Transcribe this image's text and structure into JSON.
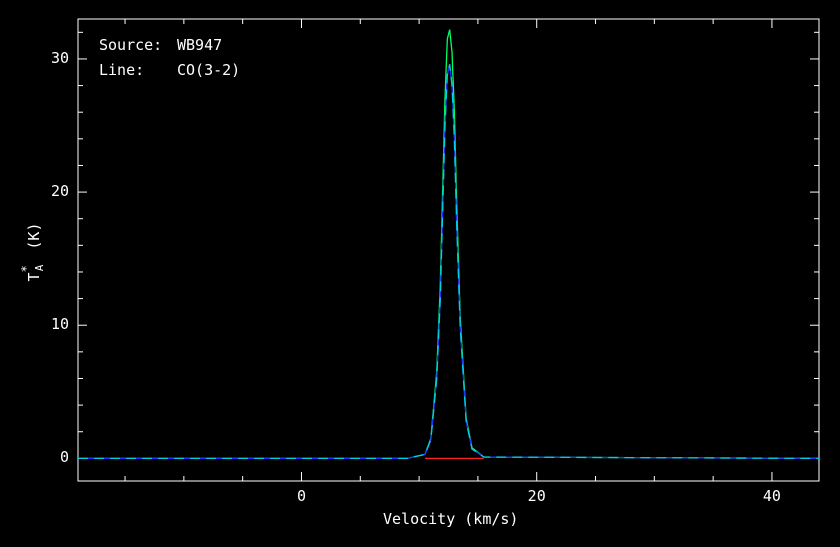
{
  "info": {
    "source_key": "Source:",
    "source_value": "WB947",
    "line_key": "Line:",
    "line_value": "CO(3-2)"
  },
  "chart_data": {
    "type": "line",
    "xlabel": "Velocity (km/s)",
    "ylabel_main": "T",
    "ylabel_sup": "*",
    "ylabel_sub": "A",
    "ylabel_unit": "(K)",
    "xlim": [
      -19,
      44
    ],
    "ylim": [
      -1.7,
      33
    ],
    "x_ticks": [
      0,
      20,
      40
    ],
    "y_ticks": [
      0,
      10,
      20,
      30
    ],
    "peak_velocity": 12.6,
    "series": [
      {
        "color": "#00ff66",
        "style": "solid",
        "x": [
          -19,
          9,
          10.5,
          11.0,
          11.5,
          11.8,
          12.0,
          12.2,
          12.4,
          12.6,
          12.8,
          13.0,
          13.2,
          13.5,
          14.0,
          14.5,
          15.5,
          44
        ],
        "y": [
          0,
          0,
          0.3,
          1.5,
          6.5,
          13.0,
          20.0,
          27.0,
          31.5,
          32.2,
          30.5,
          26.0,
          19.0,
          10.5,
          3.0,
          0.8,
          0.1,
          0
        ]
      },
      {
        "color": "#2233ff",
        "style": "solid",
        "x": [
          -19,
          9,
          10.5,
          11.0,
          11.5,
          11.8,
          12.0,
          12.2,
          12.4,
          12.6,
          12.8,
          13.0,
          13.2,
          13.5,
          14.0,
          14.5,
          15.5,
          44
        ],
        "y": [
          0,
          0,
          0.3,
          1.4,
          6.0,
          12.0,
          18.5,
          25.0,
          28.8,
          29.6,
          28.0,
          24.0,
          17.5,
          9.8,
          2.8,
          0.7,
          0.1,
          0
        ]
      },
      {
        "color": "#00d0e0",
        "style": "dashed",
        "x": [
          -19,
          9,
          10.5,
          11.0,
          11.5,
          11.8,
          12.0,
          12.2,
          12.4,
          12.6,
          12.8,
          13.0,
          13.2,
          13.5,
          14.0,
          14.5,
          15.5,
          44
        ],
        "y": [
          0,
          0,
          0.3,
          1.4,
          6.0,
          12.0,
          18.5,
          25.0,
          28.8,
          29.6,
          28.0,
          24.0,
          17.5,
          9.8,
          2.8,
          0.7,
          0.1,
          0
        ]
      }
    ],
    "baseline": {
      "color": "#ff2020",
      "x": [
        10.5,
        15.5
      ],
      "y": 0
    }
  }
}
